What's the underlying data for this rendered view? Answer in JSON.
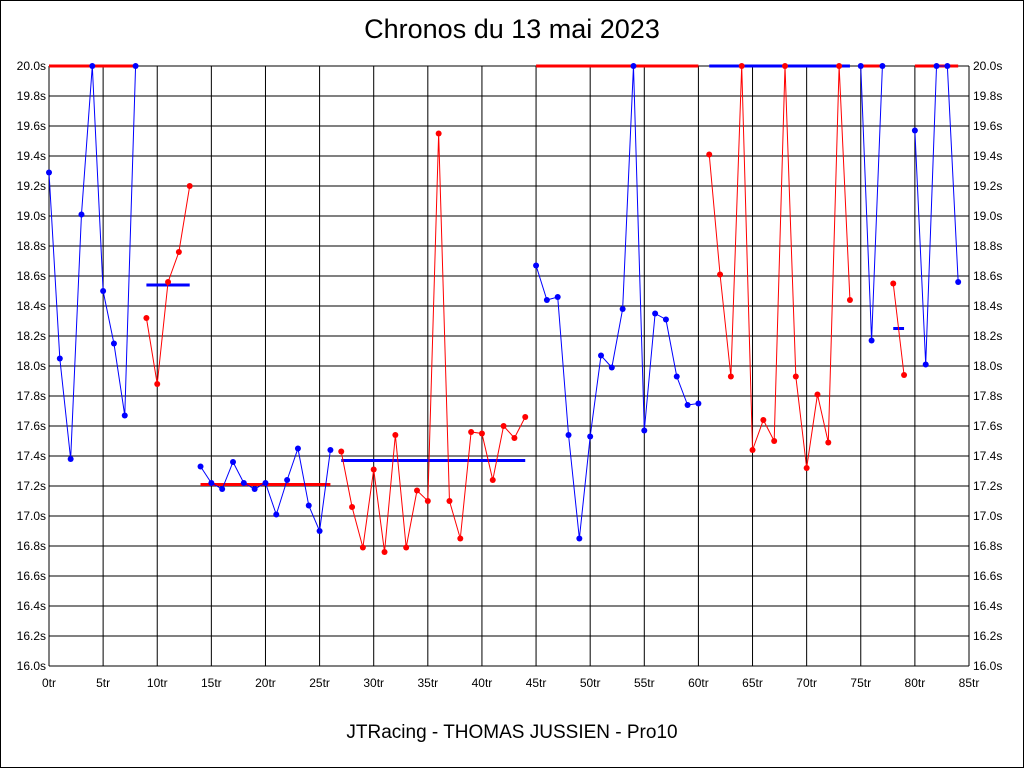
{
  "chart_data": {
    "type": "line",
    "title": "Chronos du 13 mai 2023",
    "footer": "JTRacing - THOMAS JUSSIEN - Pro10",
    "xlabel": "",
    "ylabel": "",
    "xlim": [
      0,
      85
    ],
    "ylim": [
      16.0,
      20.0
    ],
    "grid": true,
    "x_tick_labels": [
      "0tr",
      "5tr",
      "10tr",
      "15tr",
      "20tr",
      "25tr",
      "30tr",
      "35tr",
      "40tr",
      "45tr",
      "50tr",
      "55tr",
      "60tr",
      "65tr",
      "70tr",
      "75tr",
      "80tr",
      "85tr"
    ],
    "y_tick_labels": [
      "16.0s",
      "16.2s",
      "16.4s",
      "16.6s",
      "16.8s",
      "17.0s",
      "17.2s",
      "17.4s",
      "17.6s",
      "17.8s",
      "18.0s",
      "18.2s",
      "18.4s",
      "18.6s",
      "18.8s",
      "19.0s",
      "19.2s",
      "19.4s",
      "19.6s",
      "19.8s",
      "20.0s"
    ],
    "colors": {
      "blue": "#0000ff",
      "red": "#ff0000"
    },
    "series": [
      {
        "color": "blue",
        "points": [
          [
            0,
            19.29
          ],
          [
            1,
            18.05
          ],
          [
            2,
            17.38
          ],
          [
            3,
            19.01
          ],
          [
            4,
            20.0
          ],
          [
            5,
            18.5
          ],
          [
            6,
            18.15
          ],
          [
            7,
            17.67
          ],
          [
            8,
            20.0
          ]
        ]
      },
      {
        "color": "red",
        "points": [
          [
            9,
            18.32
          ],
          [
            10,
            17.88
          ],
          [
            11,
            18.56
          ],
          [
            12,
            18.76
          ],
          [
            13,
            19.2
          ]
        ]
      },
      {
        "color": "blue",
        "points": [
          [
            14,
            17.33
          ],
          [
            15,
            17.22
          ],
          [
            16,
            17.18
          ],
          [
            17,
            17.36
          ],
          [
            18,
            17.22
          ],
          [
            19,
            17.18
          ],
          [
            20,
            17.22
          ],
          [
            21,
            17.01
          ],
          [
            22,
            17.24
          ],
          [
            23,
            17.45
          ],
          [
            24,
            17.07
          ],
          [
            25,
            16.9
          ],
          [
            26,
            17.44
          ]
        ]
      },
      {
        "color": "red",
        "points": [
          [
            27,
            17.43
          ],
          [
            28,
            17.06
          ],
          [
            29,
            16.79
          ],
          [
            30,
            17.31
          ],
          [
            31,
            16.76
          ],
          [
            32,
            17.54
          ],
          [
            33,
            16.79
          ],
          [
            34,
            17.17
          ],
          [
            35,
            17.1
          ],
          [
            36,
            19.55
          ],
          [
            37,
            17.1
          ],
          [
            38,
            16.85
          ],
          [
            39,
            17.56
          ],
          [
            40,
            17.55
          ],
          [
            41,
            17.24
          ],
          [
            42,
            17.6
          ],
          [
            43,
            17.52
          ],
          [
            44,
            17.66
          ]
        ]
      },
      {
        "color": "blue",
        "points": [
          [
            45,
            18.67
          ],
          [
            46,
            18.44
          ],
          [
            47,
            18.46
          ],
          [
            48,
            17.54
          ],
          [
            49,
            16.85
          ],
          [
            50,
            17.53
          ],
          [
            51,
            18.07
          ],
          [
            52,
            17.99
          ],
          [
            53,
            18.38
          ],
          [
            54,
            20.0
          ],
          [
            55,
            17.57
          ],
          [
            56,
            18.35
          ],
          [
            57,
            18.31
          ],
          [
            58,
            17.93
          ],
          [
            59,
            17.74
          ],
          [
            60,
            17.75
          ]
        ]
      },
      {
        "color": "red",
        "points": [
          [
            61,
            19.41
          ],
          [
            62,
            18.61
          ],
          [
            63,
            17.93
          ],
          [
            64,
            20.0
          ],
          [
            65,
            17.44
          ],
          [
            66,
            17.64
          ],
          [
            67,
            17.5
          ],
          [
            68,
            20.0
          ],
          [
            69,
            17.93
          ],
          [
            70,
            17.32
          ],
          [
            71,
            17.81
          ],
          [
            72,
            17.49
          ],
          [
            73,
            20.0
          ],
          [
            74,
            18.44
          ]
        ]
      },
      {
        "color": "blue",
        "points": [
          [
            75,
            20.0
          ],
          [
            76,
            18.17
          ],
          [
            77,
            20.0
          ]
        ]
      },
      {
        "color": "red",
        "points": [
          [
            78,
            18.55
          ],
          [
            79,
            17.94
          ]
        ]
      },
      {
        "color": "blue",
        "points": [
          [
            80,
            19.57
          ],
          [
            81,
            18.01
          ],
          [
            82,
            20.0
          ],
          [
            83,
            20.0
          ],
          [
            84,
            18.56
          ]
        ]
      }
    ],
    "average_lines": [
      {
        "color": "red",
        "x": [
          0,
          8
        ],
        "y": 20.0
      },
      {
        "color": "blue",
        "x": [
          9,
          13
        ],
        "y": 18.54
      },
      {
        "color": "red",
        "x": [
          14,
          26
        ],
        "y": 17.21
      },
      {
        "color": "blue",
        "x": [
          27,
          44
        ],
        "y": 17.37
      },
      {
        "color": "red",
        "x": [
          45,
          60
        ],
        "y": 20.0
      },
      {
        "color": "blue",
        "x": [
          61,
          74
        ],
        "y": 20.0
      },
      {
        "color": "red",
        "x": [
          75,
          77
        ],
        "y": 20.0
      },
      {
        "color": "blue",
        "x": [
          78,
          79
        ],
        "y": 18.25
      },
      {
        "color": "red",
        "x": [
          80,
          84
        ],
        "y": 20.0
      }
    ]
  }
}
